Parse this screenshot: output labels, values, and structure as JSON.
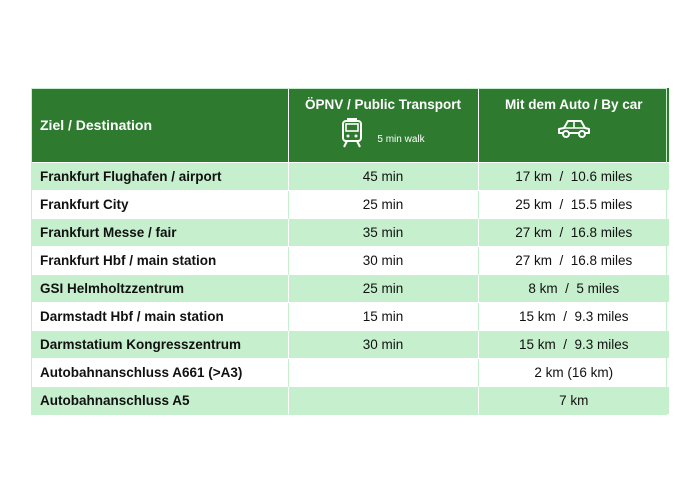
{
  "header": {
    "destination": "Ziel / Destination",
    "transport": "ÖPNV / Public Transport",
    "walk_note": "5 min walk",
    "car": "Mit dem Auto / By car"
  },
  "icons": {
    "transport": "tram-icon",
    "car": "car-icon"
  },
  "colors": {
    "header_bg": "#2e7a2f",
    "row_alt_bg": "#c6efcd",
    "row_bg": "#ffffff"
  },
  "rows": [
    {
      "destination": "Frankfurt Flughafen / airport",
      "transport": "45 min",
      "car": "17 km  /  10.6 miles"
    },
    {
      "destination": "Frankfurt City",
      "transport": "25 min",
      "car": "25 km  /  15.5 miles"
    },
    {
      "destination": "Frankfurt Messe / fair",
      "transport": "35 min",
      "car": "27 km  /  16.8 miles"
    },
    {
      "destination": "Frankfurt Hbf  / main station",
      "transport": "30 min",
      "car": "27 km  /  16.8 miles"
    },
    {
      "destination": "GSI Helmholtzzentrum",
      "transport": "25 min",
      "car": "8 km  /  5 miles"
    },
    {
      "destination": "Darmstadt Hbf / main station",
      "transport": "15 min",
      "car": "15 km  /  9.3 miles"
    },
    {
      "destination": "Darmstatium Kongresszentrum",
      "transport": "30 min",
      "car": "15 km  /  9.3 miles"
    },
    {
      "destination": "Autobahnanschluss A661 (>A3)",
      "transport": "",
      "car": "2 km (16 km)"
    },
    {
      "destination": "Autobahnanschluss A5",
      "transport": "",
      "car": "7 km"
    }
  ]
}
